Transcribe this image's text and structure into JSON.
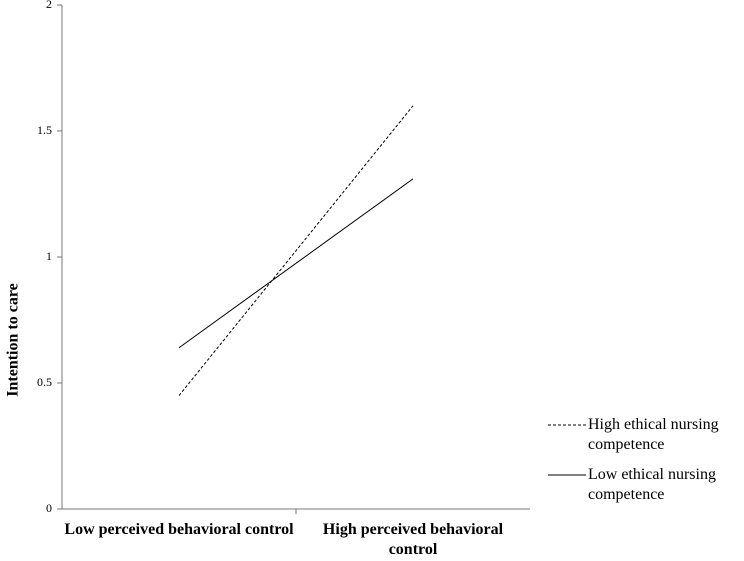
{
  "chart_data": {
    "type": "line",
    "y_label": "Intention to care",
    "categories": [
      "Low perceived behavioral control",
      "High perceived behavioral control"
    ],
    "series": [
      {
        "name": "High ethical nursing competence",
        "color": "#000000",
        "dash": "dashed",
        "values": [
          0.45,
          1.6
        ]
      },
      {
        "name": "Low ethical nursing competence",
        "color": "#000000",
        "dash": "solid",
        "values": [
          0.64,
          1.31
        ]
      }
    ],
    "ylim": [
      0,
      2
    ],
    "yticks": [
      0,
      0.5,
      1,
      1.5,
      2
    ],
    "grid": false,
    "legend": "right"
  }
}
